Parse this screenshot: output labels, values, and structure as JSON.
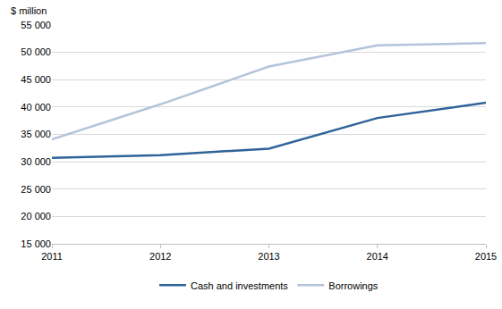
{
  "chart_data": {
    "type": "line",
    "y_axis_label": "$ million",
    "categories": [
      "2011",
      "2012",
      "2013",
      "2014",
      "2015"
    ],
    "series": [
      {
        "name": "Cash and investments",
        "color": "#2f6399",
        "values": [
          30700,
          31200,
          32400,
          38000,
          40800
        ]
      },
      {
        "name": "Borrowings",
        "color": "#b4c4da",
        "values": [
          34100,
          40500,
          47400,
          51300,
          51700
        ]
      }
    ],
    "ylim": [
      15000,
      55000
    ],
    "yticks": [
      {
        "value": 15000,
        "label": "15 000"
      },
      {
        "value": 20000,
        "label": "20 000"
      },
      {
        "value": 25000,
        "label": "25 000"
      },
      {
        "value": 30000,
        "label": "30 000"
      },
      {
        "value": 35000,
        "label": "35 000"
      },
      {
        "value": 40000,
        "label": "40 000"
      },
      {
        "value": 45000,
        "label": "45 000"
      },
      {
        "value": 50000,
        "label": "50 000"
      },
      {
        "value": 55000,
        "label": "55 000"
      }
    ],
    "grid": true,
    "legend": "bottom"
  }
}
